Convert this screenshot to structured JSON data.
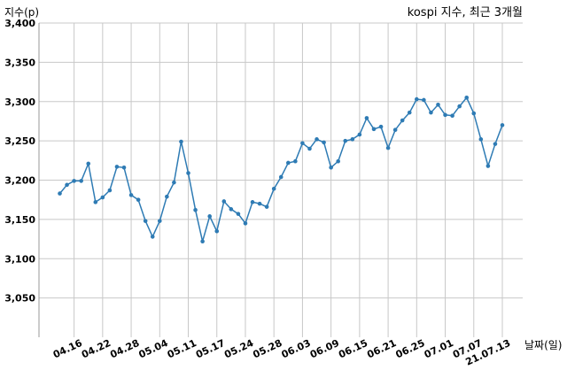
{
  "chart_data": {
    "type": "line",
    "title": "kospi 지수, 최근 3개월",
    "xlabel": "날짜(일)",
    "ylabel": "지수(p)",
    "ylim": [
      3000,
      3400
    ],
    "yticks": [
      "3,050",
      "3,100",
      "3,150",
      "3,200",
      "3,250",
      "3,300",
      "3,350",
      "3,400"
    ],
    "yticks_values": [
      3050,
      3100,
      3150,
      3200,
      3250,
      3300,
      3350,
      3400
    ],
    "xticks": [
      "04.16",
      "04.22",
      "04.28",
      "05.04",
      "05.11",
      "05.17",
      "05.24",
      "05.28",
      "06.03",
      "06.09",
      "06.15",
      "06.21",
      "06.25",
      "07.01",
      "07.07",
      "21.07.13"
    ],
    "xticks_index": [
      2,
      6,
      10,
      14,
      18,
      22,
      26,
      30,
      34,
      38,
      42,
      46,
      50,
      54,
      58,
      62
    ],
    "grid": true,
    "line_color": "#2e7bb4",
    "series": [
      {
        "values": [
          3183,
          3194,
          3199,
          3199,
          3221,
          3172,
          3178,
          3187,
          3217,
          3216,
          3181,
          3175,
          3148,
          3128,
          3148,
          3179,
          3197,
          3249,
          3209,
          3162,
          3122,
          3154,
          3135,
          3173,
          3163,
          3157,
          3145,
          3172,
          3170,
          3166,
          3189,
          3204,
          3222,
          3224,
          3247,
          3240,
          3252,
          3248,
          3216,
          3224,
          3250,
          3252,
          3258,
          3279,
          3265,
          3268,
          3241,
          3264,
          3276,
          3286,
          3303,
          3302,
          3286,
          3296,
          3283,
          3282,
          3294,
          3305,
          3285,
          3252,
          3218,
          3246,
          3270
        ]
      }
    ]
  }
}
